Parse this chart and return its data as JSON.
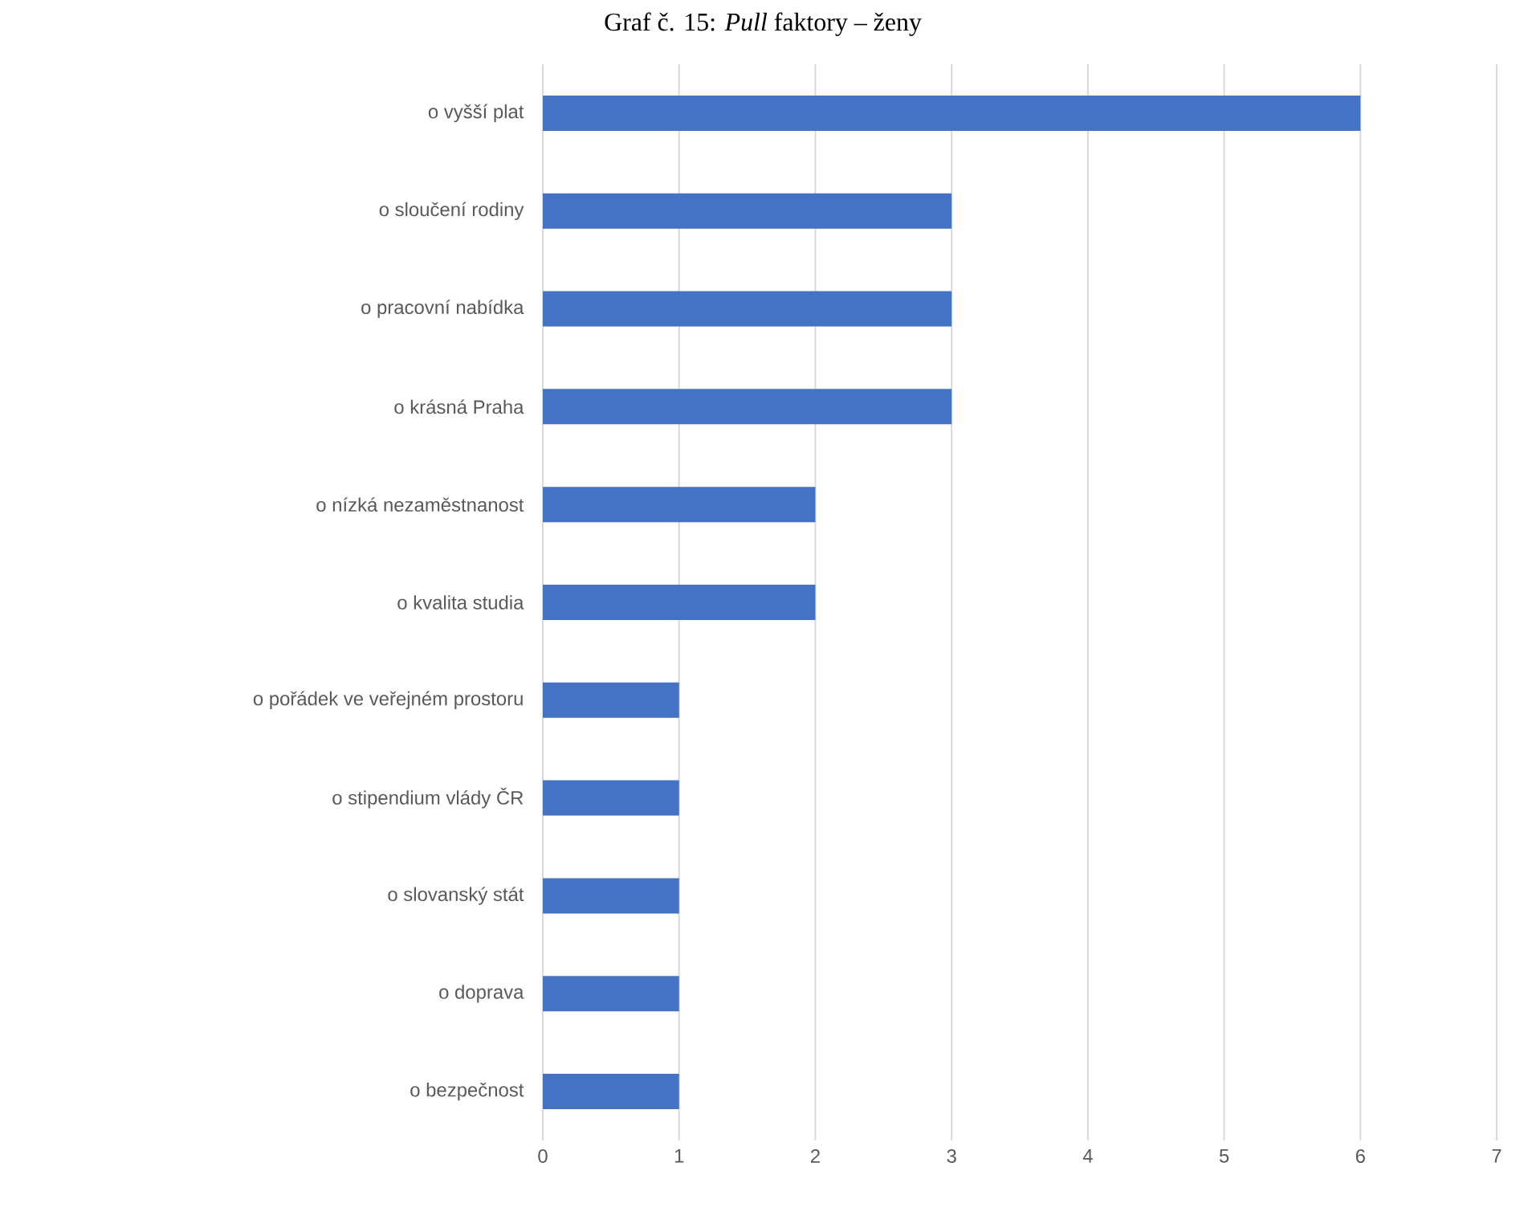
{
  "chart_data": {
    "type": "bar",
    "orientation": "horizontal",
    "title": "Graf č. 15: *Pull* faktory – ženy",
    "categories": [
      "o vyšší plat",
      "o sloučení rodiny",
      "o pracovní nabídka",
      "o krásná Praha",
      "o nízká nezaměstnanost",
      "o kvalita studia",
      "o pořádek ve veřejném prostoru",
      "o stipendium vlády ČR",
      "o slovanský stát",
      "o doprava",
      "o bezpečnost"
    ],
    "values": [
      6,
      3,
      3,
      3,
      2,
      2,
      1,
      1,
      1,
      1,
      1
    ],
    "color": "#4472c4",
    "xlim": [
      0,
      7
    ],
    "xticks": [
      0,
      1,
      2,
      3,
      4,
      5,
      6,
      7
    ],
    "grid": "x"
  }
}
